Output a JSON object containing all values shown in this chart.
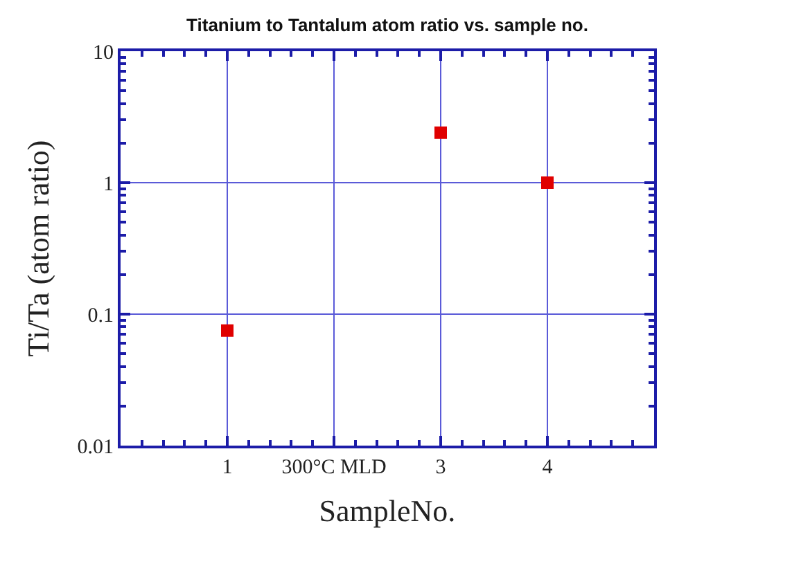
{
  "chart_data": {
    "type": "scatter",
    "title": "Titanium to Tantalum atom ratio vs. sample no.",
    "xlabel": "SampleNo.",
    "ylabel": "Ti/Ta (atom ratio)",
    "categories": [
      "1",
      "300°C MLD",
      "3",
      "4"
    ],
    "series": [
      {
        "color": "#e00000",
        "values": [
          0.075,
          null,
          2.4,
          1.0
        ]
      }
    ],
    "ylim": [
      0.01,
      10
    ],
    "yticks": [
      0.01,
      0.1,
      1,
      10
    ],
    "log": "y",
    "grid": true,
    "marker": "square"
  }
}
